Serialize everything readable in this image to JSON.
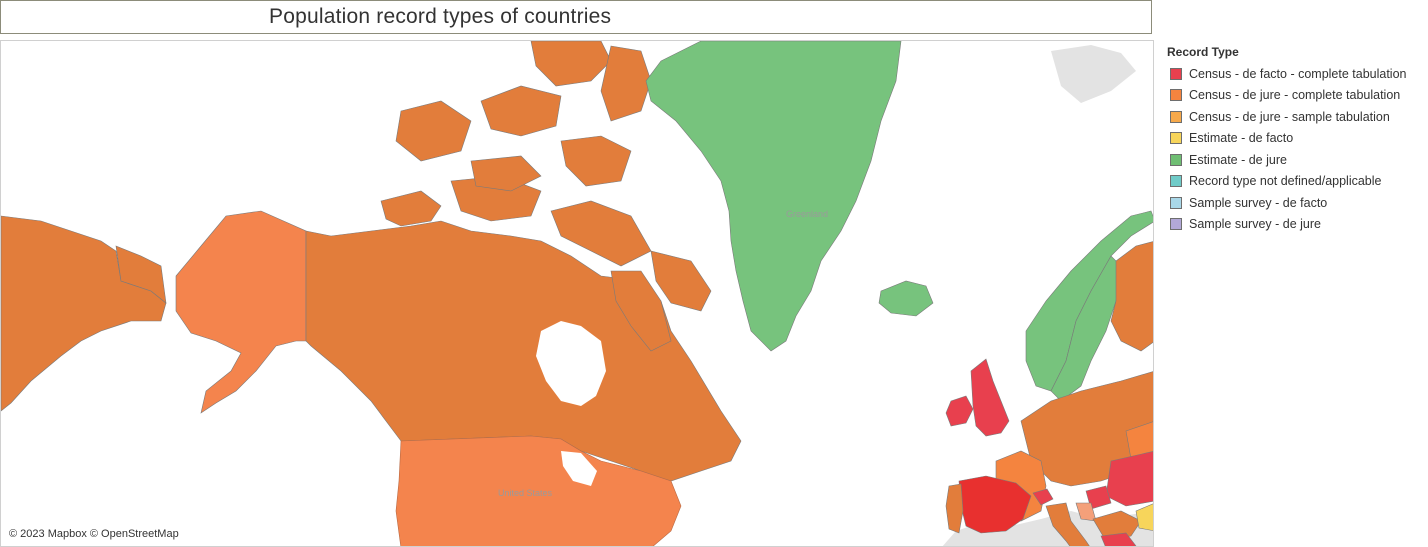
{
  "title": "Population record types of countries",
  "legend": {
    "title": "Record Type",
    "items": [
      {
        "label": "Census - de facto - complete tabulation",
        "color": "#e8404e"
      },
      {
        "label": "Census - de jure - complete tabulation",
        "color": "#f4843f"
      },
      {
        "label": "Census - de jure - sample tabulation",
        "color": "#f6a94b"
      },
      {
        "label": "Estimate - de facto",
        "color": "#f7d55b"
      },
      {
        "label": "Estimate - de jure",
        "color": "#6fbe73"
      },
      {
        "label": "Record type not defined/applicable",
        "color": "#6fcbc8"
      },
      {
        "label": "Sample survey - de facto",
        "color": "#a9d8e9"
      },
      {
        "label": "Sample survey - de jure",
        "color": "#b2a8d8"
      }
    ]
  },
  "map": {
    "labels": {
      "greenland": "Greenland",
      "united_states": "United States"
    },
    "attribution": "© 2023 Mapbox © OpenStreetMap"
  }
}
